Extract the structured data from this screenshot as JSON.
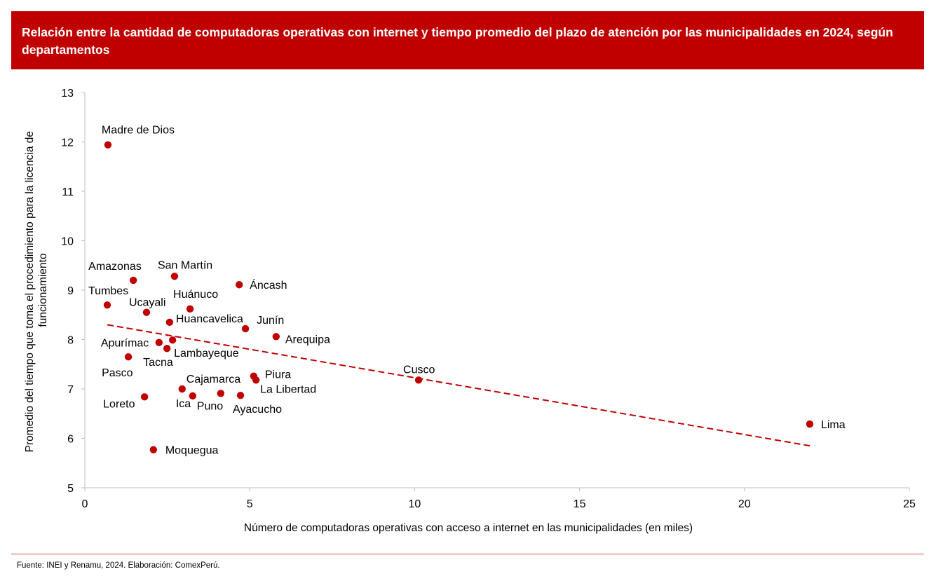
{
  "header": {
    "title": "Relación entre la cantidad de computadoras operativas con internet y tiempo promedio del plazo de atención por las municipalidades en 2024, según departamentos"
  },
  "footer": {
    "source": "Fuente: INEI y Renamu, 2024. Elaboración: ComexPerú."
  },
  "colors": {
    "header_bg": "#c00000",
    "point": "#c00000",
    "trendline": "#c00000",
    "axis": "#bfbfbf"
  },
  "chart_data": {
    "type": "scatter",
    "title": "Relación entre la cantidad de computadoras operativas con internet y tiempo promedio del plazo de atención por las municipalidades en 2024, según departamentos",
    "xlabel": "Número de computadoras operativas con acceso a internet en las municipalidades (en miles)",
    "ylabel_lines": [
      "Promedio del tiempo que toma el procedimiento para la licencia de",
      "funcionamiento"
    ],
    "xlim": [
      0,
      25
    ],
    "ylim": [
      5,
      13
    ],
    "xticks": [
      "0",
      "5",
      "10",
      "15",
      "20",
      "25"
    ],
    "yticks": [
      "5",
      "6",
      "7",
      "8",
      "9",
      "10",
      "11",
      "12",
      "13"
    ],
    "grid": false,
    "legend": "none",
    "points": [
      {
        "label": "Madre de Dios",
        "x": 0.7,
        "y": 11.94
      },
      {
        "label": "Amazonas",
        "x": 1.47,
        "y": 9.2
      },
      {
        "label": "San Martín",
        "x": 2.72,
        "y": 9.28
      },
      {
        "label": "Áncash",
        "x": 4.68,
        "y": 9.11
      },
      {
        "label": "Tumbes",
        "x": 0.68,
        "y": 8.7
      },
      {
        "label": "Ucayali",
        "x": 1.87,
        "y": 8.55
      },
      {
        "label": "Huánuco",
        "x": 3.19,
        "y": 8.62
      },
      {
        "label": "Huancavelica",
        "x": 2.57,
        "y": 8.35
      },
      {
        "label": "Junín",
        "x": 4.87,
        "y": 8.22
      },
      {
        "label": "Arequipa",
        "x": 5.8,
        "y": 8.06
      },
      {
        "label": "Apurímac",
        "x": 2.25,
        "y": 7.94
      },
      {
        "label": "Lambayeque",
        "x": 2.66,
        "y": 7.99
      },
      {
        "label": "Tacna",
        "x": 2.49,
        "y": 7.82
      },
      {
        "label": "Pasco",
        "x": 1.32,
        "y": 7.65
      },
      {
        "label": "Cusco",
        "x": 10.12,
        "y": 7.18
      },
      {
        "label": "Piura",
        "x": 5.12,
        "y": 7.26
      },
      {
        "label": "La Libertad",
        "x": 5.19,
        "y": 7.18
      },
      {
        "label": "Cajamarca",
        "x": 2.95,
        "y": 7.0
      },
      {
        "label": "Ica",
        "x": 3.27,
        "y": 6.86
      },
      {
        "label": "Puno",
        "x": 4.12,
        "y": 6.91
      },
      {
        "label": "Ayacucho",
        "x": 4.72,
        "y": 6.87
      },
      {
        "label": "Loreto",
        "x": 1.81,
        "y": 6.84
      },
      {
        "label": "Moquegua",
        "x": 2.08,
        "y": 5.77
      },
      {
        "label": "Lima",
        "x": 21.98,
        "y": 6.29
      }
    ],
    "trendline": {
      "style": "dashed",
      "x": [
        0.68,
        21.98
      ],
      "y": [
        8.3,
        5.85
      ]
    }
  }
}
